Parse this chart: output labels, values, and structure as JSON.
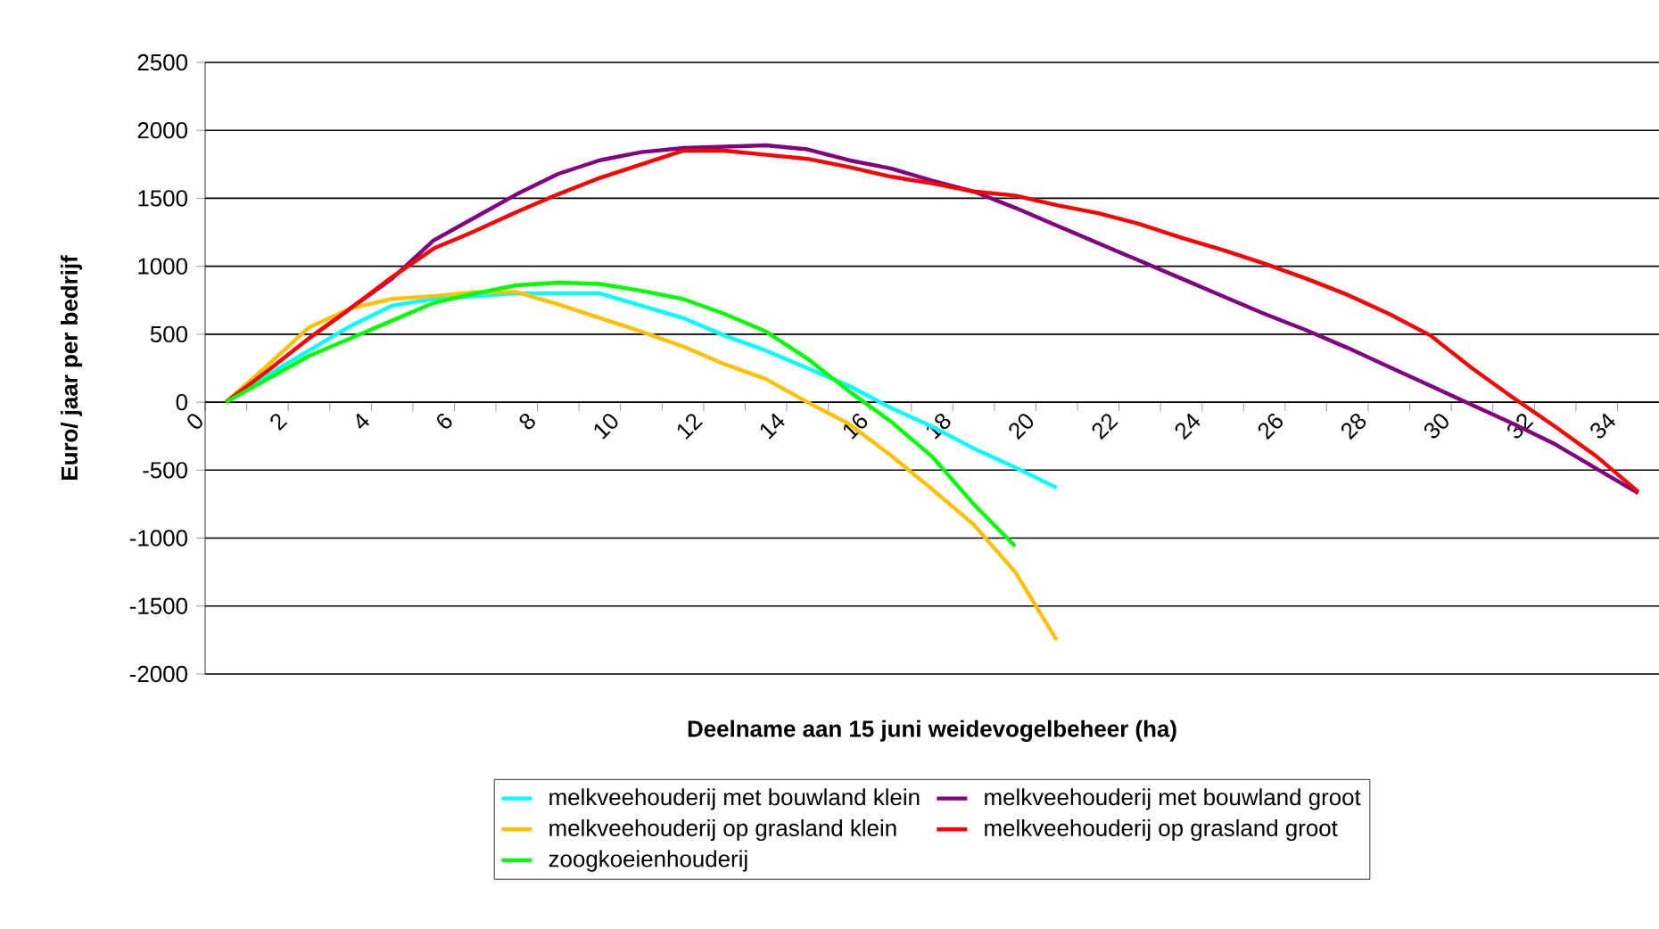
{
  "chart_data": {
    "type": "line",
    "xlabel": "Deelname aan 15 juni weidevogelbeheer (ha)",
    "ylabel": "Euro/ jaar per bedrijf",
    "xlim": [
      0,
      35
    ],
    "ylim": [
      -2000,
      2500
    ],
    "xticks": [
      0,
      {
        "value": 1,
        "label": null
      },
      2,
      {
        "value": 3,
        "label": null
      },
      4,
      {
        "value": 5,
        "label": null
      },
      6,
      {
        "value": 7,
        "label": null
      },
      8,
      {
        "value": 9,
        "label": null
      },
      10,
      {
        "value": 11,
        "label": null
      },
      12,
      {
        "value": 13,
        "label": null
      },
      14,
      {
        "value": 15,
        "label": null
      },
      16,
      {
        "value": 17,
        "label": null
      },
      18,
      {
        "value": 19,
        "label": null
      },
      20,
      {
        "value": 21,
        "label": null
      },
      22,
      {
        "value": 23,
        "label": null
      },
      24,
      {
        "value": 25,
        "label": null
      },
      26,
      {
        "value": 27,
        "label": null
      },
      28,
      {
        "value": 29,
        "label": null
      },
      30,
      {
        "value": 31,
        "label": null
      },
      32,
      {
        "value": 33,
        "label": null
      },
      34
    ],
    "yticks": [
      -2000,
      -1500,
      -1000,
      -500,
      0,
      500,
      1000,
      1500,
      2000,
      2500
    ],
    "grid": "y",
    "legend": "bottom",
    "marker": "none",
    "line_style": "solid",
    "series": [
      {
        "name": "melkveehouderij met bouwland klein",
        "color": "#00ffff",
        "x": [
          0.5,
          1.5,
          2.5,
          3.5,
          4.5,
          5.5,
          6.5,
          7.5,
          8.5,
          9.5,
          10.5,
          11.5,
          12.5,
          13.5,
          14.5,
          15.5,
          16.5,
          17.5,
          18.5,
          19.5,
          20.5
        ],
        "values": [
          0,
          200,
          380,
          560,
          710,
          760,
          780,
          800,
          800,
          800,
          710,
          620,
          490,
          380,
          250,
          120,
          -40,
          -180,
          -340,
          -480,
          -630
        ]
      },
      {
        "name": "melkveehouderij met bouwland groot",
        "color": "#800080",
        "x": [
          2.5,
          3.5,
          4.5,
          5.5,
          6.5,
          7.5,
          8.5,
          9.5,
          10.5,
          11.5,
          12.5,
          13.5,
          14.5,
          15.5,
          16.5,
          17.5,
          18.5,
          19.5,
          20.5,
          21.5,
          22.5,
          23.5,
          24.5,
          25.5,
          26.5,
          27.5,
          28.5,
          29.5,
          30.5,
          31.5,
          32.5,
          33.5,
          34.5
        ],
        "values": [
          470,
          690,
          910,
          1190,
          1360,
          1530,
          1680,
          1780,
          1840,
          1870,
          1880,
          1890,
          1860,
          1780,
          1720,
          1630,
          1550,
          1430,
          1300,
          1170,
          1040,
          910,
          780,
          650,
          530,
          400,
          260,
          120,
          -20,
          -160,
          -310,
          -490,
          -670
        ]
      },
      {
        "name": "melkveehouderij op grasland klein",
        "color": "#ffc000",
        "x": [
          0.5,
          1.5,
          2.5,
          3.5,
          4.5,
          5.5,
          6.5,
          7.5,
          8.5,
          9.5,
          10.5,
          11.5,
          12.5,
          13.5,
          14.5,
          15.5,
          16.5,
          17.5,
          18.5,
          19.5,
          20.5
        ],
        "values": [
          0,
          270,
          550,
          690,
          760,
          780,
          810,
          810,
          720,
          620,
          520,
          410,
          280,
          170,
          0,
          -160,
          -390,
          -640,
          -900,
          -1250,
          -1750
        ]
      },
      {
        "name": "melkveehouderij op grasland groot",
        "color": "#ff0000",
        "x": [
          0.5,
          1.5,
          2.5,
          3.5,
          4.5,
          5.5,
          6.5,
          7.5,
          8.5,
          9.5,
          10.5,
          11.5,
          12.5,
          13.5,
          14.5,
          15.5,
          16.5,
          17.5,
          18.5,
          19.5,
          20.5,
          21.5,
          22.5,
          23.5,
          24.5,
          25.5,
          26.5,
          27.5,
          28.5,
          29.5,
          30.5,
          31.5,
          32.5,
          33.5,
          34.5
        ],
        "values": [
          0,
          230,
          470,
          690,
          920,
          1130,
          1260,
          1400,
          1530,
          1650,
          1750,
          1850,
          1850,
          1820,
          1790,
          1730,
          1660,
          1610,
          1550,
          1520,
          1450,
          1390,
          1310,
          1210,
          1120,
          1020,
          910,
          790,
          650,
          490,
          250,
          30,
          -180,
          -400,
          -660
        ]
      },
      {
        "name": "zoogkoeienhouderij",
        "color": "#00ff00",
        "x": [
          0.5,
          1.5,
          2.5,
          3.5,
          4.5,
          5.5,
          6.5,
          7.5,
          8.5,
          9.5,
          10.5,
          11.5,
          12.5,
          13.5,
          14.5,
          15.5,
          16.5,
          17.5,
          18.5,
          19.5
        ],
        "values": [
          0,
          170,
          340,
          470,
          600,
          730,
          800,
          860,
          880,
          870,
          820,
          760,
          650,
          520,
          320,
          80,
          -140,
          -400,
          -750,
          -1060
        ]
      }
    ]
  }
}
